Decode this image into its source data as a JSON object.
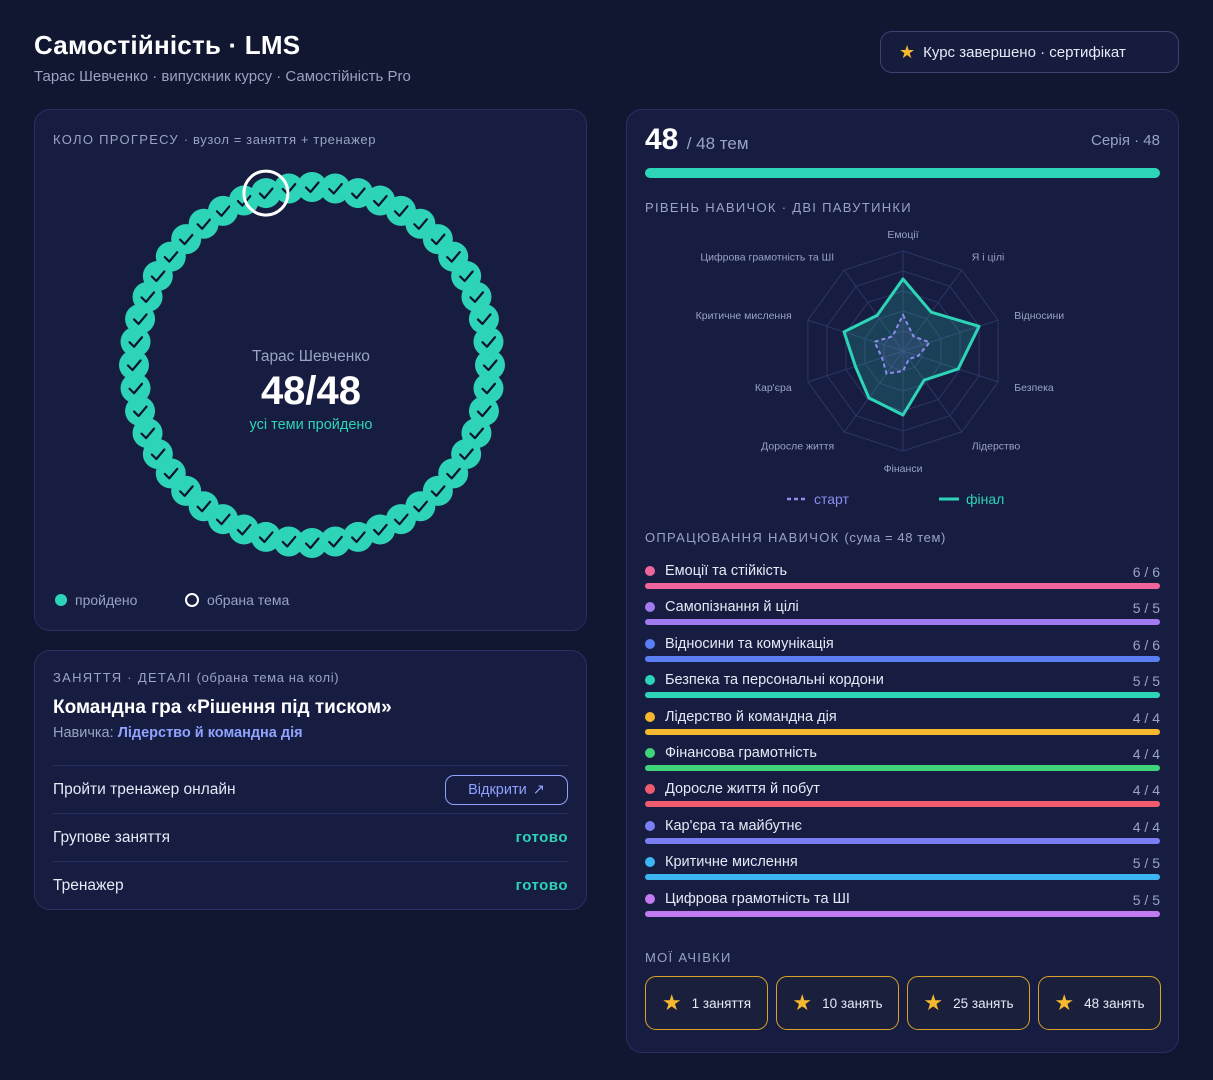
{
  "header": {
    "title": "Самостійність · LMS",
    "subtitle": "Тарас Шевченко · випускник курсу · Самостійність Pro",
    "certificate_label": "Курс завершено · сертифікат"
  },
  "progress_ring": {
    "label_main": "КОЛО ПРОГРЕСУ",
    "label_hint": "· вузол = заняття + тренажер",
    "student_name": "Тарас Шевченко",
    "score": "48/48",
    "status": "усі теми пройдено",
    "completed_nodes": 48,
    "total_nodes": 48,
    "selected_node": 46,
    "legend_done": "пройдено",
    "legend_selected": "обрана тема",
    "color_done": "#2ed4b8"
  },
  "details": {
    "label_main": "ЗАНЯТТЯ · ДЕТАЛІ",
    "label_hint": "(обрана тема на колі)",
    "lesson_title": "Командна гра «Рішення під тиском»",
    "skill_prefix": "Навичка:",
    "skill_value": "Лідерство й командна дія",
    "rows": [
      {
        "label": "Пройти тренажер онлайн",
        "action": "Відкрити",
        "action_icon": "external-arrow-icon"
      },
      {
        "label": "Групове заняття",
        "status": "готово"
      },
      {
        "label": "Тренажер",
        "status": "готово"
      }
    ]
  },
  "summary": {
    "done": "48",
    "total_text": "/ 48 тем",
    "series_text": "Серія · 48",
    "progress": 1.0
  },
  "radar": {
    "label": "РІВЕНЬ НАВИЧОК · ДВІ ПАВУТИНКИ",
    "legend_start": "старт",
    "legend_final": "фінал",
    "start_color": "#8f8cf0",
    "final_color": "#2ed4b8"
  },
  "chart_data": {
    "type": "radar",
    "title": "РІВЕНЬ НАВИЧОК · ДВІ ПАВУТИНКИ",
    "axes": [
      "Емоції",
      "Я і цілі",
      "Відносини",
      "Безпека",
      "Лідерство",
      "Фінанси",
      "Доросле життя",
      "Кар'єра",
      "Критичне мислення",
      "Цифрова грамотність та ШІ"
    ],
    "max": 5,
    "series": [
      {
        "name": "старт",
        "values": [
          1.8,
          0.9,
          1.4,
          0.8,
          0.5,
          1.0,
          1.4,
          1.1,
          1.5,
          0.9
        ]
      },
      {
        "name": "фінал",
        "values": [
          3.6,
          2.4,
          4.0,
          2.9,
          1.8,
          3.2,
          2.9,
          2.5,
          3.1,
          2.2
        ]
      }
    ]
  },
  "skills": {
    "label_main": "ОПРАЦЮВАННЯ НАВИЧОК",
    "label_hint": "(сума = 48 тем)",
    "items": [
      {
        "name": "Емоції та стійкість",
        "done": 6,
        "total": 6,
        "count_text": "6 / 6",
        "color": "#f0659c"
      },
      {
        "name": "Самопізнання й цілі",
        "done": 5,
        "total": 5,
        "count_text": "5 / 5",
        "color": "#a27af0"
      },
      {
        "name": "Відносини та комунікація",
        "done": 6,
        "total": 6,
        "count_text": "6 / 6",
        "color": "#5c7ef5"
      },
      {
        "name": "Безпека та персональні кордони",
        "done": 5,
        "total": 5,
        "count_text": "5 / 5",
        "color": "#2ed4b8"
      },
      {
        "name": "Лідерство й командна дія",
        "done": 4,
        "total": 4,
        "count_text": "4 / 4",
        "color": "#f5b82e"
      },
      {
        "name": "Фінансова грамотність",
        "done": 4,
        "total": 4,
        "count_text": "4 / 4",
        "color": "#3fd47a"
      },
      {
        "name": "Доросле життя й побут",
        "done": 4,
        "total": 4,
        "count_text": "4 / 4",
        "color": "#f05c6e"
      },
      {
        "name": "Кар'єра та майбутнє",
        "done": 4,
        "total": 4,
        "count_text": "4 / 4",
        "color": "#7b7ef2"
      },
      {
        "name": "Критичне мислення",
        "done": 5,
        "total": 5,
        "count_text": "5 / 5",
        "color": "#3bb6f2"
      },
      {
        "name": "Цифрова грамотність та ШІ",
        "done": 5,
        "total": 5,
        "count_text": "5 / 5",
        "color": "#c17af0"
      }
    ]
  },
  "achievements": {
    "label": "МОЇ АЧІВКИ",
    "items": [
      {
        "label": "1 заняття",
        "icon": "star-icon"
      },
      {
        "label": "10 занять",
        "icon": "star-icon"
      },
      {
        "label": "25 занять",
        "icon": "star-icon"
      },
      {
        "label": "48 занять",
        "icon": "star-icon"
      }
    ]
  }
}
